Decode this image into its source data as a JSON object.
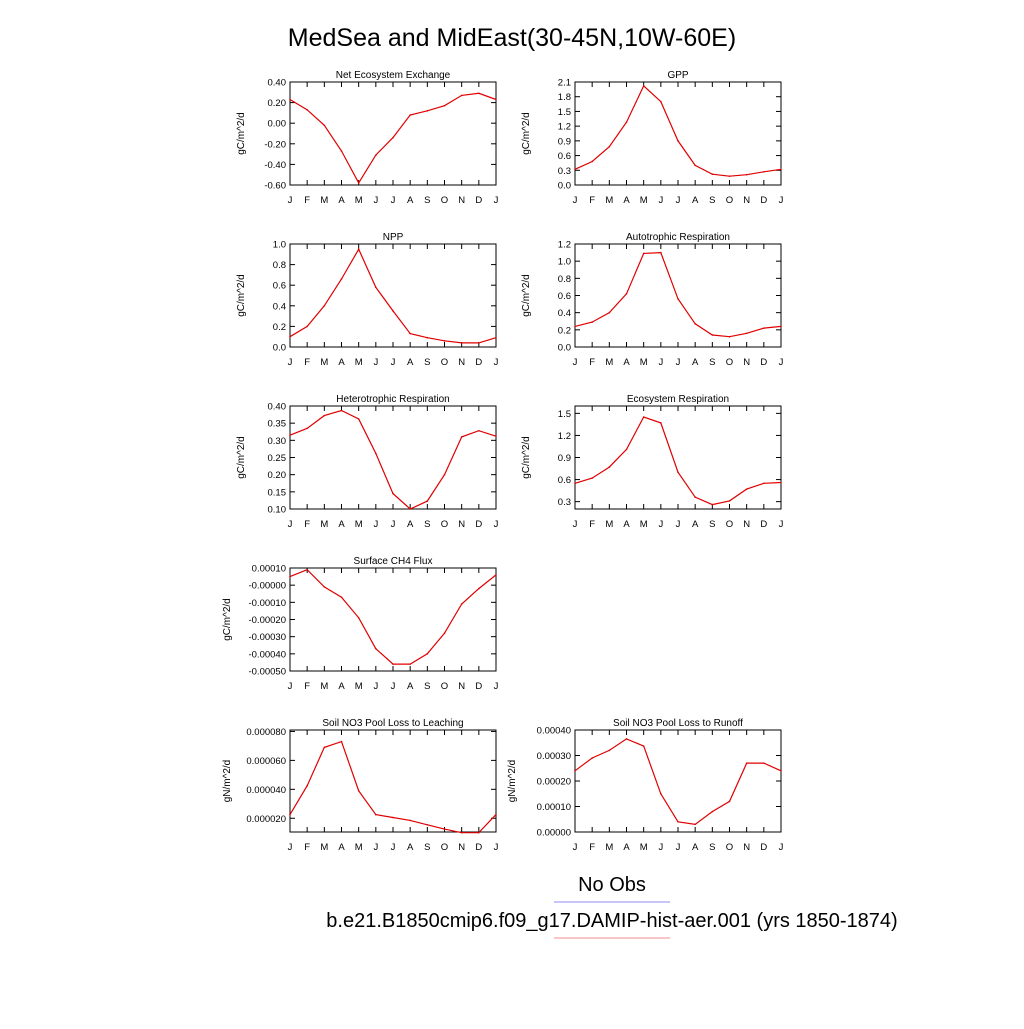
{
  "figure": {
    "title": "MedSea and MidEast(30-45N,10W-60E)",
    "legend": [
      {
        "label": "No Obs",
        "color": "#8c8cf0"
      },
      {
        "label": "b.e21.B1850cmip6.f09_g17.DAMIP-hist-aer.001 (yrs 1850-1874)",
        "color": "#f08c8c"
      }
    ],
    "line_color": "#e00000"
  },
  "chart_data": [
    {
      "type": "line",
      "title": "Net Ecosystem Exchange",
      "ylabel": "gC/m^2/d",
      "categories": [
        "J",
        "F",
        "M",
        "A",
        "M",
        "J",
        "J",
        "A",
        "S",
        "O",
        "N",
        "D",
        "J"
      ],
      "values": [
        0.23,
        0.13,
        -0.02,
        -0.27,
        -0.58,
        -0.31,
        -0.14,
        0.08,
        0.12,
        0.17,
        0.27,
        0.29,
        0.23
      ],
      "ylim": [
        -0.6,
        0.4
      ],
      "yticks": [
        "0.40",
        "0.20",
        "0.00",
        "-0.20",
        "-0.40",
        "-0.60"
      ],
      "yticks_values": [
        0.4,
        0.2,
        0.0,
        -0.2,
        -0.4,
        -0.6
      ]
    },
    {
      "type": "line",
      "title": "GPP",
      "ylabel": "gC/m^2/d",
      "categories": [
        "J",
        "F",
        "M",
        "A",
        "M",
        "J",
        "J",
        "A",
        "S",
        "O",
        "N",
        "D",
        "J"
      ],
      "values": [
        0.32,
        0.48,
        0.78,
        1.28,
        2.02,
        1.7,
        0.9,
        0.4,
        0.22,
        0.18,
        0.21,
        0.27,
        0.32
      ],
      "ylim": [
        0.0,
        2.1
      ],
      "yticks": [
        "2.1",
        "1.8",
        "1.5",
        "1.2",
        "0.9",
        "0.6",
        "0.3",
        "0.0"
      ],
      "yticks_values": [
        2.1,
        1.8,
        1.5,
        1.2,
        0.9,
        0.6,
        0.3,
        0.0
      ]
    },
    {
      "type": "line",
      "title": "NPP",
      "ylabel": "gC/m^2/d",
      "categories": [
        "J",
        "F",
        "M",
        "A",
        "M",
        "J",
        "J",
        "A",
        "S",
        "O",
        "N",
        "D",
        "J"
      ],
      "values": [
        0.1,
        0.2,
        0.4,
        0.66,
        0.95,
        0.58,
        0.35,
        0.13,
        0.09,
        0.06,
        0.04,
        0.04,
        0.09
      ],
      "ylim": [
        0.0,
        1.0
      ],
      "yticks": [
        "1.0",
        "0.8",
        "0.6",
        "0.4",
        "0.2",
        "0.0"
      ],
      "yticks_values": [
        1.0,
        0.8,
        0.6,
        0.4,
        0.2,
        0.0
      ]
    },
    {
      "type": "line",
      "title": "Autotrophic Respiration",
      "ylabel": "gC/m^2/d",
      "categories": [
        "J",
        "F",
        "M",
        "A",
        "M",
        "J",
        "J",
        "A",
        "S",
        "O",
        "N",
        "D",
        "J"
      ],
      "values": [
        0.24,
        0.29,
        0.4,
        0.62,
        1.09,
        1.1,
        0.56,
        0.27,
        0.14,
        0.12,
        0.16,
        0.22,
        0.24
      ],
      "ylim": [
        0.0,
        1.2
      ],
      "yticks": [
        "1.2",
        "1.0",
        "0.8",
        "0.6",
        "0.4",
        "0.2",
        "0.0"
      ],
      "yticks_values": [
        1.2,
        1.0,
        0.8,
        0.6,
        0.4,
        0.2,
        0.0
      ]
    },
    {
      "type": "line",
      "title": "Heterotrophic Respiration",
      "ylabel": "gC/m^2/d",
      "categories": [
        "J",
        "F",
        "M",
        "A",
        "M",
        "J",
        "J",
        "A",
        "S",
        "O",
        "N",
        "D",
        "J"
      ],
      "values": [
        0.315,
        0.335,
        0.372,
        0.387,
        0.362,
        0.262,
        0.145,
        0.1,
        0.123,
        0.2,
        0.31,
        0.328,
        0.312
      ],
      "ylim": [
        0.1,
        0.4
      ],
      "yticks": [
        "0.40",
        "0.35",
        "0.30",
        "0.25",
        "0.20",
        "0.15",
        "0.10"
      ],
      "yticks_values": [
        0.4,
        0.35,
        0.3,
        0.25,
        0.2,
        0.15,
        0.1
      ]
    },
    {
      "type": "line",
      "title": "Ecosystem Respiration",
      "ylabel": "gC/m^2/d",
      "categories": [
        "J",
        "F",
        "M",
        "A",
        "M",
        "J",
        "J",
        "A",
        "S",
        "O",
        "N",
        "D",
        "J"
      ],
      "values": [
        0.55,
        0.62,
        0.77,
        1.01,
        1.45,
        1.37,
        0.7,
        0.36,
        0.26,
        0.31,
        0.47,
        0.55,
        0.56
      ],
      "ylim": [
        0.2,
        1.6
      ],
      "yticks": [
        "1.5",
        "1.2",
        "0.9",
        "0.6",
        "0.3"
      ],
      "yticks_values": [
        1.5,
        1.2,
        0.9,
        0.6,
        0.3
      ]
    },
    {
      "type": "line",
      "title": "Surface CH4 Flux",
      "ylabel": "gC/m^2/d",
      "categories": [
        "J",
        "F",
        "M",
        "A",
        "M",
        "J",
        "J",
        "A",
        "S",
        "O",
        "N",
        "D",
        "J"
      ],
      "values": [
        5e-05,
        9e-05,
        -1e-05,
        -7e-05,
        -0.00019,
        -0.00037,
        -0.00046,
        -0.00046,
        -0.0004,
        -0.00028,
        -0.00011,
        -2e-05,
        6e-05
      ],
      "ylim": [
        -0.0005,
        0.0001
      ],
      "yticks": [
        "0.00010",
        "-0.00000",
        "-0.00010",
        "-0.00020",
        "-0.00030",
        "-0.00040",
        "-0.00050"
      ],
      "yticks_values": [
        0.0001,
        0.0,
        -0.0001,
        -0.0002,
        -0.0003,
        -0.0004,
        -0.0005
      ]
    },
    {
      "type": "line",
      "title": "Soil NO3 Pool Loss to Leaching",
      "ylabel": "gN/m^2/d",
      "categories": [
        "J",
        "F",
        "M",
        "A",
        "M",
        "J",
        "J",
        "A",
        "S",
        "O",
        "N",
        "D",
        "J"
      ],
      "values": [
        2.25e-05,
        4.25e-05,
        6.9e-05,
        7.3e-05,
        3.9e-05,
        2.25e-05,
        2.05e-05,
        1.85e-05,
        1.55e-05,
        1.25e-05,
        1e-05,
        1e-05,
        2.25e-05
      ],
      "ylim": [
        1.05e-05,
        8.1e-05
      ],
      "yticks": [
        "0.000080",
        "0.000060",
        "0.000040",
        "0.000020"
      ],
      "yticks_values": [
        8e-05,
        6e-05,
        4e-05,
        2e-05
      ]
    },
    {
      "type": "line",
      "title": "Soil NO3 Pool Loss to Runoff",
      "ylabel": "gN/m^2/d",
      "categories": [
        "J",
        "F",
        "M",
        "A",
        "M",
        "J",
        "J",
        "A",
        "S",
        "O",
        "N",
        "D",
        "J"
      ],
      "values": [
        0.00024,
        0.00029,
        0.00032,
        0.000365,
        0.000337,
        0.00015,
        4e-05,
        3e-05,
        8e-05,
        0.00012,
        0.00027,
        0.00027,
        0.00024
      ],
      "ylim": [
        0.0,
        0.0004
      ],
      "yticks": [
        "0.00040",
        "0.00030",
        "0.00020",
        "0.00010",
        "0.00000"
      ],
      "yticks_values": [
        0.0004,
        0.0003,
        0.0002,
        0.0001,
        0.0
      ]
    }
  ]
}
